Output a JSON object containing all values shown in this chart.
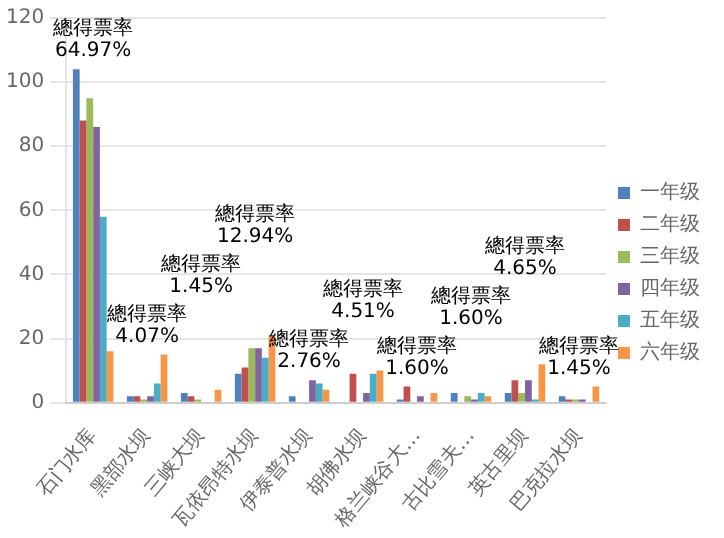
{
  "chart_data": {
    "type": "bar",
    "categories": [
      "石门水库",
      "黑部水坝",
      "三峡大坝",
      "瓦依昂特水坝",
      "伊泰普水坝",
      "胡佛水坝",
      "格兰峡谷大…",
      "古比雪夫…",
      "英古里坝",
      "巴克拉水坝"
    ],
    "series": [
      {
        "name": "一年级",
        "color": "#4f81bd",
        "values": [
          104,
          2,
          3,
          9,
          2,
          0,
          1,
          3,
          3,
          2
        ]
      },
      {
        "name": "二年级",
        "color": "#c0504d",
        "values": [
          88,
          2,
          2,
          11,
          0,
          9,
          5,
          0,
          7,
          1
        ]
      },
      {
        "name": "三年级",
        "color": "#9bbb59",
        "values": [
          95,
          1,
          1,
          17,
          0,
          0,
          0,
          2,
          3,
          1
        ]
      },
      {
        "name": "四年级",
        "color": "#8064a2",
        "values": [
          86,
          2,
          0,
          17,
          7,
          3,
          2,
          1,
          7,
          1
        ]
      },
      {
        "name": "五年级",
        "color": "#4bacc6",
        "values": [
          58,
          6,
          0,
          14,
          6,
          9,
          0,
          3,
          1,
          0
        ]
      },
      {
        "name": "六年级",
        "color": "#f79646",
        "values": [
          16,
          15,
          4,
          21,
          4,
          10,
          3,
          2,
          12,
          5
        ]
      }
    ],
    "ylim": [
      0,
      120
    ],
    "yticks": [
      0,
      20,
      40,
      60,
      80,
      100,
      120
    ],
    "grid": "y",
    "legend": "right",
    "annotations": [
      "總得票率\n64.97%",
      "總得票率\n4.07%",
      "總得票率\n1.45%",
      "總得票率\n12.94%",
      "總得票率\n2.76%",
      "總得票率\n4.51%",
      "總得票率\n1.60%",
      "總得票率\n1.60%",
      "總得票率\n4.65%",
      "總得票率\n1.45%"
    ]
  }
}
